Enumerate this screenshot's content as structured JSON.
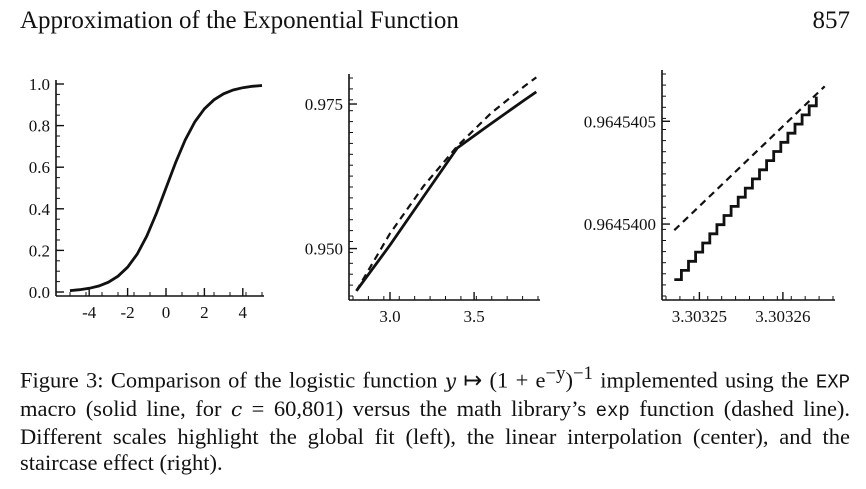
{
  "header": {
    "title": "Approximation of the Exponential Function",
    "page_number": "857"
  },
  "caption": {
    "fig_label": "Figure 3:",
    "part1": "Comparison of the logistic function",
    "formula_var": "y",
    "formula_map": "↦",
    "formula_expr": "(1 + e",
    "formula_exp": "−y",
    "formula_close": ")",
    "formula_inv": "−1",
    "part2": "implemented using the",
    "macro": "EXP",
    "part3": "macro (solid line, for",
    "c_var": "c",
    "c_eq": "= 60,801)",
    "part4": "versus the math library’s",
    "libfn": "exp",
    "part5": "function (dashed line). Different scales highlight the global fit (left), the linear interpolation (center), and the staircase effect (right)."
  },
  "chart_data": [
    {
      "type": "line",
      "title": "",
      "xlim": [
        -5,
        5
      ],
      "ylim": [
        0,
        1
      ],
      "x_ticks": [
        -4,
        -2,
        0,
        2,
        4
      ],
      "x_tick_labels": [
        "-4",
        "-2",
        "0",
        "2",
        "4"
      ],
      "y_ticks": [
        0,
        0.2,
        0.4,
        0.6,
        0.8,
        1.0
      ],
      "y_tick_labels": [
        "0.0",
        "0.2",
        "0.4",
        "0.6",
        "0.8",
        "1.0"
      ],
      "series": [
        {
          "style": "solid",
          "x": [
            -5,
            -4.5,
            -4,
            -3.5,
            -3,
            -2.5,
            -2,
            -1.5,
            -1,
            -0.5,
            0,
            0.5,
            1,
            1.5,
            2,
            2.5,
            3,
            3.5,
            4,
            4.5,
            5
          ],
          "y": [
            0.0067,
            0.011,
            0.018,
            0.029,
            0.047,
            0.076,
            0.119,
            0.182,
            0.269,
            0.378,
            0.5,
            0.622,
            0.731,
            0.818,
            0.881,
            0.924,
            0.953,
            0.971,
            0.982,
            0.989,
            0.993
          ]
        },
        {
          "style": "dashed",
          "x": [
            -5,
            -4.5,
            -4,
            -3.5,
            -3,
            -2.5,
            -2,
            -1.5,
            -1,
            -0.5,
            0,
            0.5,
            1,
            1.5,
            2,
            2.5,
            3,
            3.5,
            4,
            4.5,
            5
          ],
          "y": [
            0.0067,
            0.011,
            0.018,
            0.029,
            0.047,
            0.076,
            0.119,
            0.182,
            0.269,
            0.378,
            0.5,
            0.622,
            0.731,
            0.818,
            0.881,
            0.924,
            0.953,
            0.971,
            0.982,
            0.989,
            0.993
          ]
        }
      ]
    },
    {
      "type": "line",
      "title": "",
      "xlim": [
        2.78,
        3.88
      ],
      "ylim": [
        0.9418,
        0.9795
      ],
      "x_ticks": [
        3.0,
        3.5
      ],
      "x_tick_labels": [
        "3.0",
        "3.5"
      ],
      "y_ticks": [
        0.95,
        0.975
      ],
      "y_tick_labels": [
        "0.950",
        "0.975"
      ],
      "series": [
        {
          "style": "solid",
          "x": [
            2.8,
            3.0,
            3.2,
            3.4,
            3.6,
            3.8,
            3.87
          ],
          "y": [
            0.9427,
            0.9506,
            0.959,
            0.9674,
            0.9716,
            0.9757,
            0.9771
          ]
        },
        {
          "style": "dashed",
          "x": [
            2.8,
            3.0,
            3.2,
            3.4,
            3.6,
            3.8,
            3.87
          ],
          "y": [
            0.9427,
            0.9526,
            0.9608,
            0.9677,
            0.9734,
            0.9781,
            0.9796
          ]
        }
      ]
    },
    {
      "type": "line",
      "title": "",
      "xlim": [
        3.303246,
        3.303266
      ],
      "ylim": [
        0.96453965,
        0.96454073
      ],
      "x_ticks": [
        3.30325,
        3.30326
      ],
      "x_tick_labels": [
        "3.30325",
        "3.30326"
      ],
      "y_ticks": [
        0.96454,
        0.9645405
      ],
      "y_tick_labels": [
        "0.9645400",
        "0.9645405"
      ],
      "series": [
        {
          "style": "solid-step",
          "x": [
            3.303247,
            3.303264
          ],
          "y": [
            0.96453973,
            0.96454062
          ],
          "steps": 20
        },
        {
          "style": "dashed",
          "x": [
            3.303247,
            3.303265
          ],
          "y": [
            0.96453997,
            0.96454067
          ]
        }
      ]
    }
  ]
}
